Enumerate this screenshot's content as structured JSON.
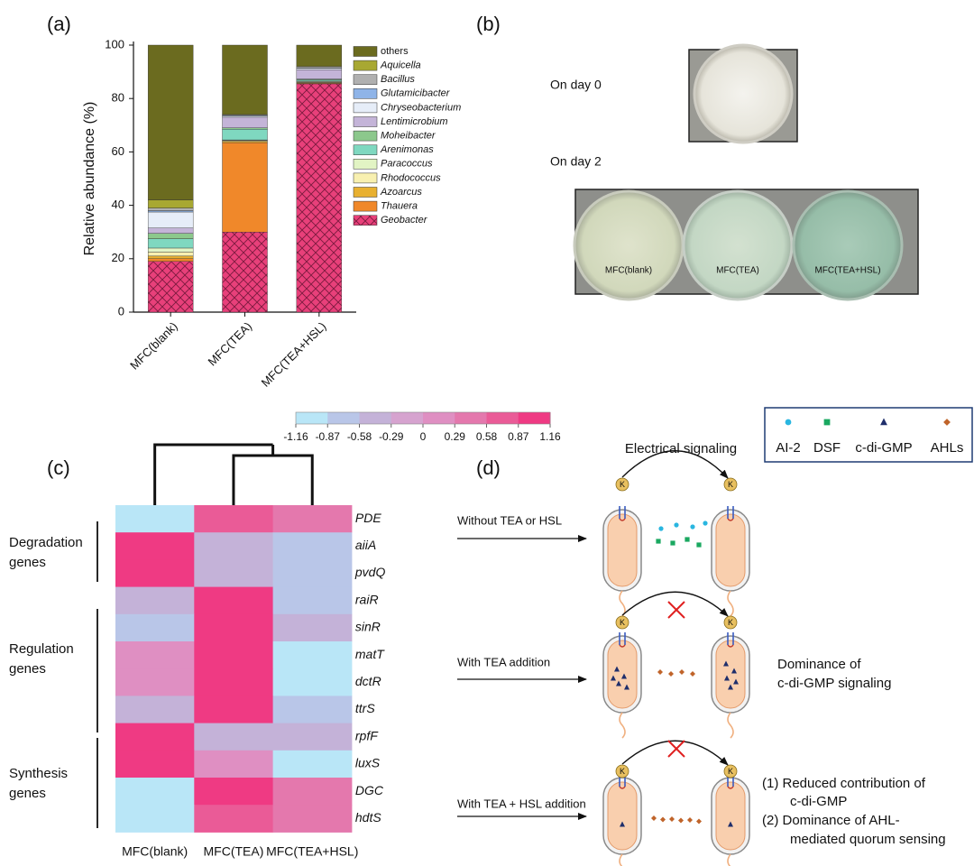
{
  "chart_data": [
    {
      "type": "bar",
      "stacked": true,
      "panel_label": "(a)",
      "ylabel": "Relative abundance (%)",
      "categories": [
        "MFC(blank)",
        "MFC(TEA)",
        "MFC(TEA+HSL)"
      ],
      "ylim": [
        0,
        100
      ],
      "yticks": [
        0,
        20,
        40,
        60,
        80,
        100
      ],
      "series": [
        {
          "name": "Geobacter",
          "color": "#e8407a",
          "hatch": true,
          "italic": true,
          "values": [
            19,
            30,
            85.5
          ]
        },
        {
          "name": "Thauera",
          "color": "#f0882a",
          "italic": true,
          "values": [
            1,
            33.5,
            0.3
          ]
        },
        {
          "name": "Azoarcus",
          "color": "#e8b030",
          "italic": true,
          "values": [
            1,
            0.5,
            0.2
          ]
        },
        {
          "name": "Rhodococcus",
          "color": "#f8f0b0",
          "italic": true,
          "values": [
            1.5,
            0.3,
            0.2
          ]
        },
        {
          "name": "Paracoccus",
          "color": "#e2f4c4",
          "italic": true,
          "values": [
            1.5,
            0.2,
            0.3
          ]
        },
        {
          "name": "Arenimonas",
          "color": "#7fd8c0",
          "italic": true,
          "values": [
            3.5,
            4,
            0.5
          ]
        },
        {
          "name": "Moheibacter",
          "color": "#8cc88c",
          "italic": true,
          "values": [
            2,
            0.5,
            0.3
          ]
        },
        {
          "name": "Lentimicrobium",
          "color": "#c4b4d8",
          "italic": true,
          "values": [
            2,
            4,
            3.5
          ]
        },
        {
          "name": "Chryseobacterium",
          "color": "#e6edf8",
          "italic": true,
          "values": [
            6,
            0.5,
            0.5
          ]
        },
        {
          "name": "Glutamicibacter",
          "color": "#8fb4e8",
          "italic": true,
          "values": [
            0.5,
            0.2,
            0.2
          ]
        },
        {
          "name": "Bacillus",
          "color": "#b0b0b0",
          "italic": true,
          "values": [
            1,
            0.3,
            0.5
          ]
        },
        {
          "name": "Aquicella",
          "color": "#a8a832",
          "italic": true,
          "values": [
            3,
            0,
            0
          ]
        },
        {
          "name": "others",
          "color": "#6b6b1f",
          "values": [
            58,
            26,
            8
          ]
        }
      ]
    },
    {
      "type": "heatmap",
      "panel_label": "(c)",
      "columns": [
        "MFC(blank)",
        "MFC(TEA)",
        "MFC(TEA+HSL)"
      ],
      "rows": [
        "PDE",
        "aiiA",
        "pvdQ",
        "raiR",
        "sinR",
        "matT",
        "dctR",
        "ttrS",
        "rpfF",
        "luxS",
        "DGC",
        "hdtS"
      ],
      "values": [
        [
          -1.0,
          0.7,
          0.45
        ],
        [
          1.0,
          -0.45,
          -0.7
        ],
        [
          1.0,
          -0.45,
          -0.7
        ],
        [
          -0.45,
          1.0,
          -0.7
        ],
        [
          -0.7,
          1.0,
          -0.45
        ],
        [
          0.15,
          1.0,
          -1.0
        ],
        [
          0.15,
          1.0,
          -1.0
        ],
        [
          -0.45,
          1.0,
          -0.7
        ],
        [
          1.0,
          -0.45,
          -0.45
        ],
        [
          1.0,
          0.15,
          -1.0
        ],
        [
          -1.0,
          1.0,
          0.45
        ],
        [
          -1.0,
          0.7,
          0.45
        ]
      ],
      "colorbar": {
        "ticks": [
          -1.16,
          -0.87,
          -0.58,
          -0.29,
          0,
          0.29,
          0.58,
          0.87,
          1.16
        ],
        "colors": [
          "#b9e6f7",
          "#b9c6e8",
          "#c4b2d8",
          "#d6a3cf",
          "#df8fc2",
          "#e478ad",
          "#ea5b97",
          "#ef3a83"
        ]
      },
      "groups": [
        {
          "label_lines": [
            "Degradation",
            "genes"
          ]
        },
        {
          "label_lines": [
            "Regulation",
            "genes"
          ]
        },
        {
          "label_lines": [
            "Synthesis",
            "genes"
          ]
        }
      ]
    }
  ],
  "photo_panel": {
    "panel_label": "(b)",
    "day0_label": "On day 0",
    "day2_label": "On day 2",
    "dish_labels": [
      "MFC(blank)",
      "MFC(TEA)",
      "MFC(TEA+HSL)"
    ]
  },
  "diagram_panel": {
    "panel_label": "(d)",
    "legend": [
      {
        "name": "AI-2",
        "color": "#29b6e0"
      },
      {
        "name": "DSF",
        "color": "#1aa860"
      },
      {
        "name": "c-di-GMP",
        "color": "#1f2e6b"
      },
      {
        "name": "AHLs",
        "color": "#c0642a"
      }
    ],
    "electrical_label": "Electrical signaling",
    "ion_label": "K",
    "conditions": [
      {
        "label": "Without TEA or HSL"
      },
      {
        "label": "With TEA addition",
        "note_lines": [
          "Dominance of",
          "c-di-GMP signaling"
        ]
      },
      {
        "label": "With TEA + HSL addition",
        "note_lines": [
          "(1) Reduced contribution of",
          "c-di-GMP",
          "(2) Dominance of AHL-",
          "mediated quorum sensing"
        ]
      }
    ]
  }
}
